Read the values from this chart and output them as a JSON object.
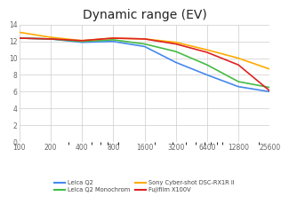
{
  "title": "Dynamic range (EV)",
  "x_ticks": [
    100,
    200,
    400,
    800,
    1600,
    3200,
    6400,
    12800,
    25600
  ],
  "x_tick_labels": [
    "100",
    "200",
    "400",
    "800",
    "1600",
    "3200",
    "6400",
    "12800",
    "25600"
  ],
  "ylim": [
    0,
    14
  ],
  "yticks": [
    0,
    2,
    4,
    6,
    8,
    10,
    12,
    14
  ],
  "series": {
    "Leica Q2": {
      "color": "#4488ee",
      "x": [
        100,
        200,
        400,
        800,
        1600,
        3200,
        6400,
        12800,
        25600
      ],
      "y": [
        12.4,
        12.3,
        11.9,
        12.0,
        11.4,
        9.5,
        8.0,
        6.6,
        6.0
      ]
    },
    "Leica Q2 Monochrom": {
      "color": "#44bb44",
      "x": [
        100,
        200,
        400,
        800,
        1600,
        3200,
        6400,
        12800,
        25600
      ],
      "y": [
        12.4,
        12.3,
        12.0,
        12.2,
        11.7,
        10.8,
        9.2,
        7.2,
        6.5
      ]
    },
    "Sony Cyber-shot DSC-RX1R II": {
      "color": "#ffaa00",
      "x": [
        100,
        200,
        400,
        800,
        1600,
        3200,
        6400,
        12800,
        25600
      ],
      "y": [
        13.1,
        12.5,
        12.1,
        12.4,
        12.3,
        11.9,
        11.0,
        10.0,
        8.7
      ]
    },
    "Fujifilm X100V": {
      "color": "#dd2222",
      "x": [
        100,
        200,
        400,
        800,
        1600,
        3200,
        6400,
        12800,
        25600
      ],
      "y": [
        12.4,
        12.3,
        12.1,
        12.4,
        12.3,
        11.7,
        10.7,
        9.2,
        6.1
      ]
    }
  },
  "legend_order_col1": [
    "Leica Q2",
    "Sony Cyber-shot DSC-RX1R II"
  ],
  "legend_order_col2": [
    "Leica Q2 Monochrom",
    "Fujifilm X100V"
  ],
  "background_color": "#ffffff",
  "grid_color": "#cccccc",
  "title_fontsize": 10,
  "tick_color": "#666666"
}
